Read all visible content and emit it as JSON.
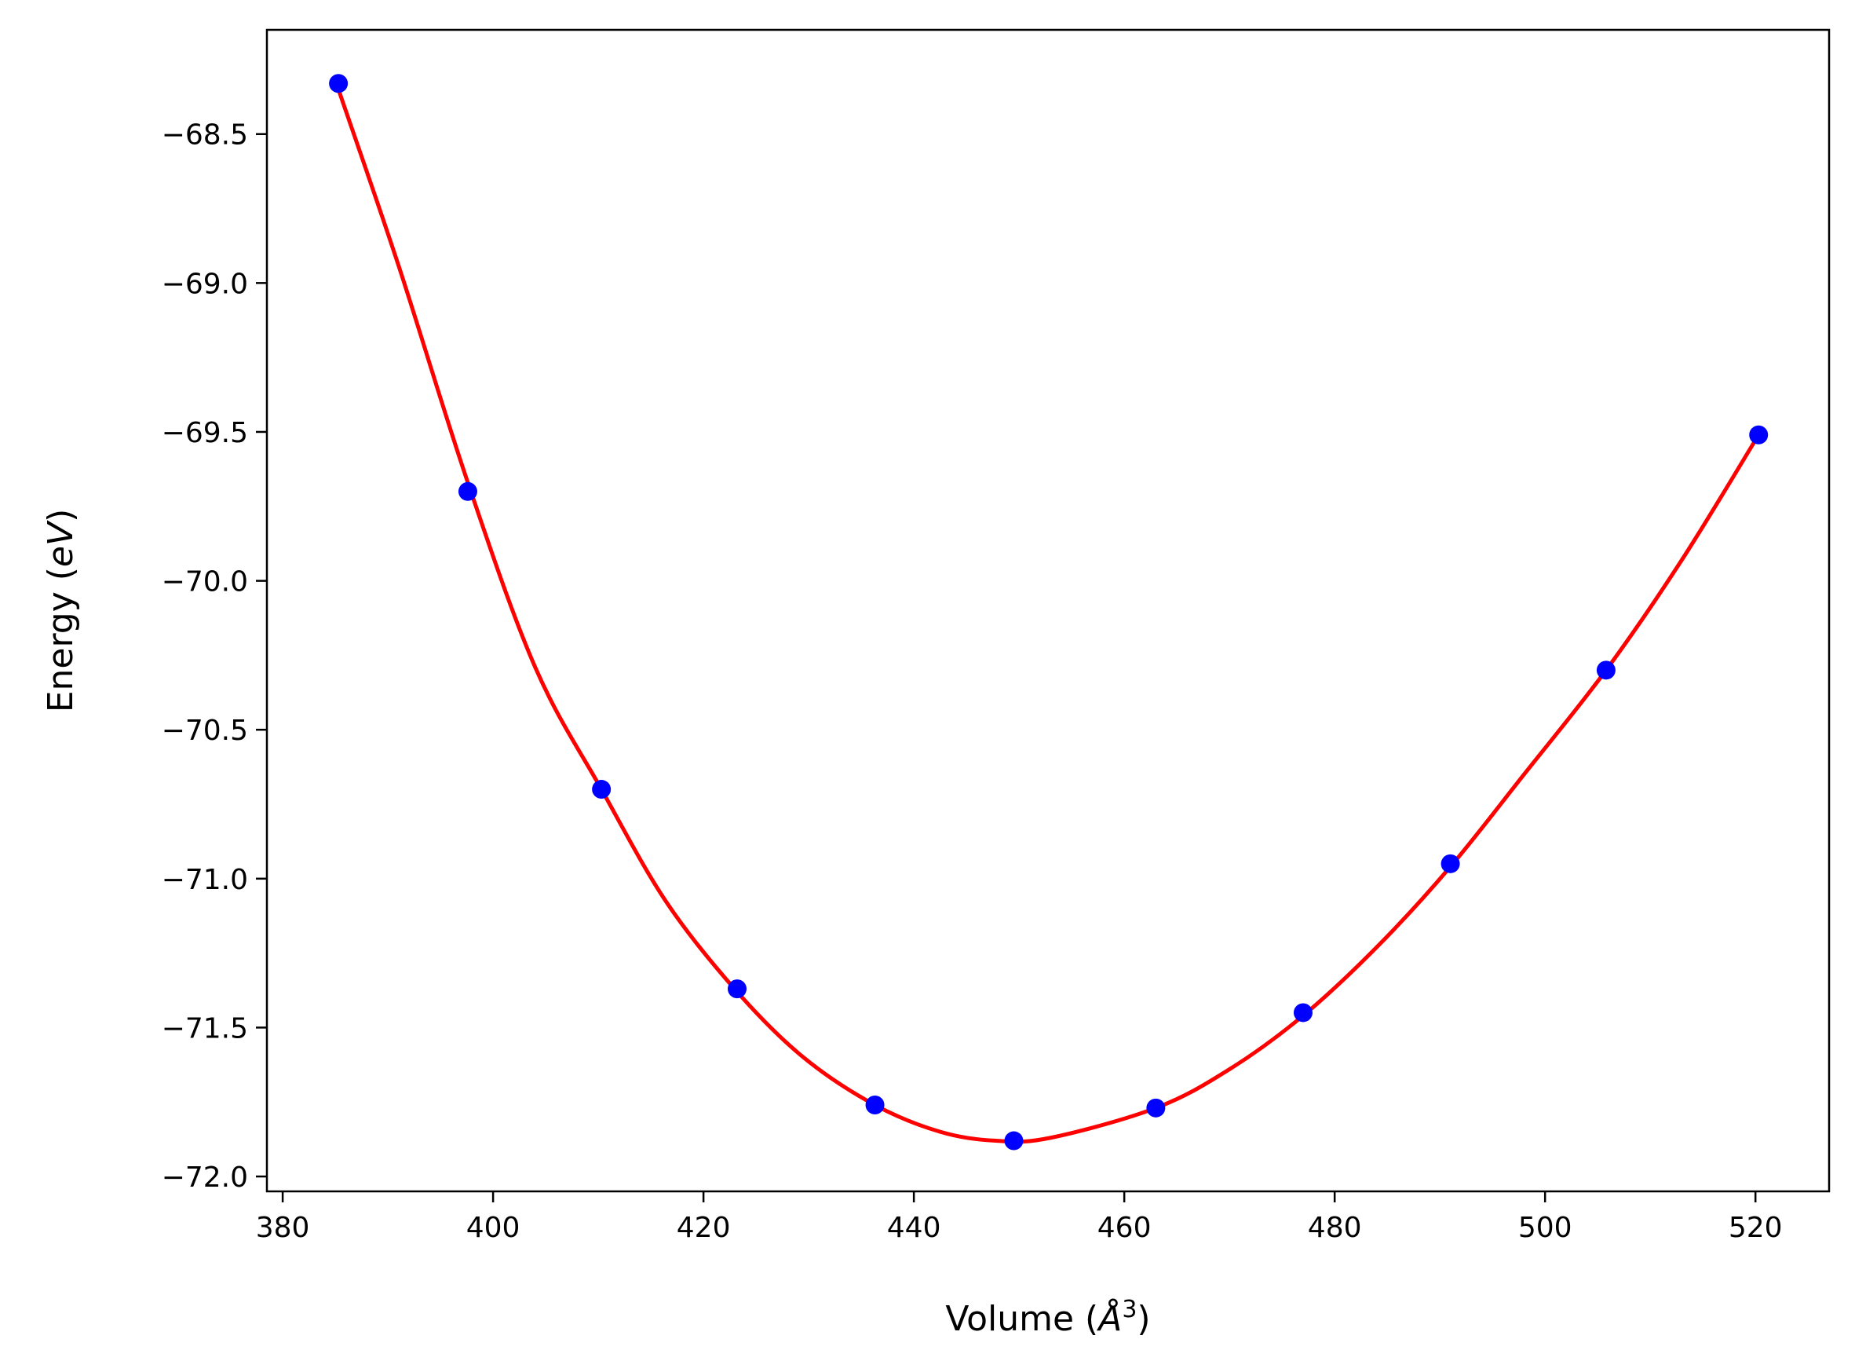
{
  "chart_data": {
    "type": "line",
    "title": "",
    "xlabel": {
      "prefix": "Volume (",
      "symbol": "Å",
      "sup": "3",
      "suffix": ")"
    },
    "ylabel": {
      "prefix": "Energy (",
      "italic": "eV",
      "suffix": ")"
    },
    "xlim": [
      378.5,
      527.0
    ],
    "ylim": [
      -72.05,
      -68.15
    ],
    "xticks": [
      380,
      400,
      420,
      440,
      460,
      480,
      500,
      520
    ],
    "xtick_labels": [
      "380",
      "400",
      "420",
      "440",
      "460",
      "480",
      "500",
      "520"
    ],
    "yticks": [
      -68.5,
      -69.0,
      -69.5,
      -70.0,
      -70.5,
      -71.0,
      -71.5,
      -72.0
    ],
    "ytick_labels": [
      "−68.5",
      "−69.0",
      "−69.5",
      "−70.0",
      "−70.5",
      "−71.0",
      "−71.5",
      "−72.0"
    ],
    "grid": false,
    "series": [
      {
        "kind": "line",
        "color": "#ff0000",
        "x": [
          385.3,
          391.0,
          397.6,
          404.0,
          410.3,
          416.5,
          423.2,
          429.5,
          436.3,
          442.5,
          447.8,
          453.0,
          463.0,
          470.0,
          477.0,
          484.0,
          491.0,
          498.0,
          505.8,
          513.0,
          520.3
        ],
        "y": [
          -68.35,
          -68.94,
          -69.67,
          -70.29,
          -70.7,
          -71.08,
          -71.38,
          -71.6,
          -71.76,
          -71.85,
          -71.88,
          -71.87,
          -71.77,
          -71.64,
          -71.46,
          -71.23,
          -70.96,
          -70.65,
          -70.3,
          -69.93,
          -69.51
        ]
      },
      {
        "kind": "scatter",
        "color": "#0000ff",
        "x": [
          385.3,
          397.6,
          410.3,
          423.2,
          436.3,
          449.5,
          463.0,
          477.0,
          491.0,
          505.8,
          520.3
        ],
        "y": [
          -68.33,
          -69.7,
          -70.7,
          -71.37,
          -71.76,
          -71.88,
          -71.77,
          -71.45,
          -70.95,
          -70.3,
          -69.51
        ]
      }
    ]
  }
}
